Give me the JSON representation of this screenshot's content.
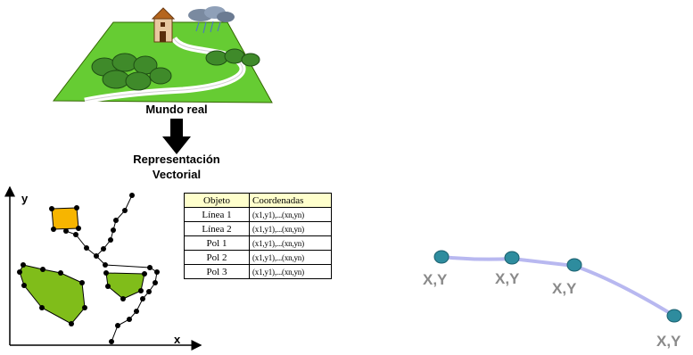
{
  "captions": {
    "real_world": "Mundo real",
    "representation_line1": "Representación",
    "representation_line2": "Vectorial"
  },
  "axes": {
    "x": "x",
    "y": "y"
  },
  "table": {
    "headers": [
      "Objeto",
      "Coordenadas"
    ],
    "rows": [
      {
        "object": "Línea 1",
        "coords": "(x1,y1),...(xn,yn)"
      },
      {
        "object": "Línea 2",
        "coords": "(x1,y1),...(xn,yn)"
      },
      {
        "object": "Pol 1",
        "coords": "(x1,y1),...(xn,yn)"
      },
      {
        "object": "Pol 2",
        "coords": "(x1,y1),...(xn,yn)"
      },
      {
        "object": "Pol 3",
        "coords": "(x1,y1),...(xn,yn)"
      }
    ]
  },
  "vertex_labels": [
    "X,Y",
    "X,Y",
    "X,Y",
    "X,Y"
  ],
  "colors": {
    "grass": "#66cc33",
    "polygon_green": "#80bd1a",
    "polygon_orange": "#f7b500",
    "node_teal": "#2e8c9e",
    "node_label": "#8a8a8a",
    "line_lavender": "#b8b8f0",
    "table_header": "#ffffcc"
  }
}
